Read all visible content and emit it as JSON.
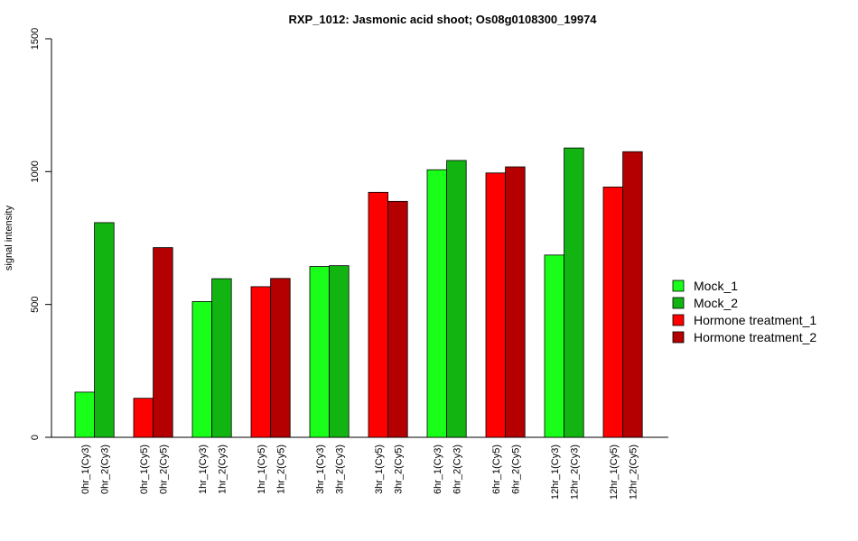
{
  "chart_data": {
    "type": "bar",
    "title": "RXP_1012: Jasmonic acid shoot; Os08g0108300_19974",
    "ylabel": "signal intensity",
    "xlabel": "",
    "ylim": [
      0,
      1500
    ],
    "yticks": [
      0,
      500,
      1000,
      1500
    ],
    "grid": false,
    "legend_position": "right",
    "series": [
      {
        "name": "Mock_1",
        "color": "#19ff19"
      },
      {
        "name": "Mock_2",
        "color": "#11b411"
      },
      {
        "name": "Hormone treatment_1",
        "color": "#ff0000"
      },
      {
        "name": "Hormone treatment_2",
        "color": "#b40000"
      }
    ],
    "bars": [
      {
        "label": "0hr_1(Cy3)",
        "value": 170,
        "series": 0
      },
      {
        "label": "0hr_2(Cy3)",
        "value": 808,
        "series": 1
      },
      {
        "label": "0hr_1(Cy5)",
        "value": 147,
        "series": 2
      },
      {
        "label": "0hr_2(Cy5)",
        "value": 714,
        "series": 3
      },
      {
        "label": "1hr_1(Cy3)",
        "value": 511,
        "series": 0
      },
      {
        "label": "1hr_2(Cy3)",
        "value": 597,
        "series": 1
      },
      {
        "label": "1hr_1(Cy5)",
        "value": 567,
        "series": 2
      },
      {
        "label": "1hr_2(Cy5)",
        "value": 598,
        "series": 3
      },
      {
        "label": "3hr_1(Cy3)",
        "value": 643,
        "series": 0
      },
      {
        "label": "3hr_2(Cy3)",
        "value": 646,
        "series": 1
      },
      {
        "label": "3hr_1(Cy5)",
        "value": 922,
        "series": 2
      },
      {
        "label": "3hr_2(Cy5)",
        "value": 888,
        "series": 3
      },
      {
        "label": "6hr_1(Cy3)",
        "value": 1007,
        "series": 0
      },
      {
        "label": "6hr_2(Cy3)",
        "value": 1042,
        "series": 1
      },
      {
        "label": "6hr_1(Cy5)",
        "value": 995,
        "series": 2
      },
      {
        "label": "6hr_2(Cy5)",
        "value": 1018,
        "series": 3
      },
      {
        "label": "12hr_1(Cy3)",
        "value": 686,
        "series": 0
      },
      {
        "label": "12hr_2(Cy3)",
        "value": 1089,
        "series": 1
      },
      {
        "label": "12hr_1(Cy5)",
        "value": 942,
        "series": 2
      },
      {
        "label": "12hr_2(Cy5)",
        "value": 1075,
        "series": 3
      }
    ]
  }
}
